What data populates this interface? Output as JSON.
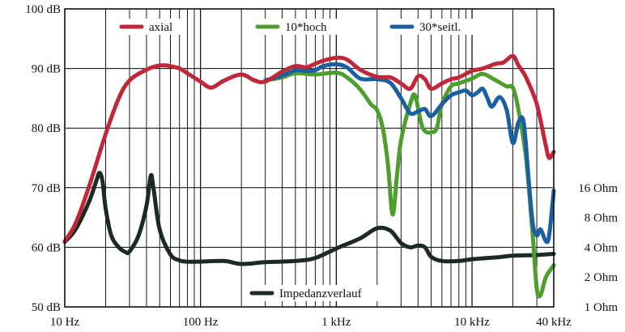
{
  "chart_data": {
    "type": "line",
    "title": "",
    "xlabel": "",
    "ylabel": "",
    "x_scale": "log",
    "xlim": [
      10,
      40000
    ],
    "ylim": [
      50,
      100
    ],
    "grid": true,
    "x_tick_labels": [
      {
        "value": 10,
        "label": "10 Hz"
      },
      {
        "value": 100,
        "label": "100 Hz"
      },
      {
        "value": 1000,
        "label": "1 kHz"
      },
      {
        "value": 10000,
        "label": "10 kHz"
      },
      {
        "value": 40000,
        "label": "40 kHz"
      }
    ],
    "y_tick_labels": [
      {
        "value": 50,
        "label": "50 dB"
      },
      {
        "value": 60,
        "label": "60 dB"
      },
      {
        "value": 70,
        "label": "70 dB"
      },
      {
        "value": 80,
        "label": "80 dB"
      },
      {
        "value": 90,
        "label": "90 dB"
      },
      {
        "value": 100,
        "label": "100 dB"
      }
    ],
    "right_axis_labels": [
      {
        "value": 16,
        "label": "16 Ohm"
      },
      {
        "value": 8,
        "label": "8 Ohm"
      },
      {
        "value": 4,
        "label": "4 Ohm"
      },
      {
        "value": 2,
        "label": "2 Ohm"
      },
      {
        "value": 1,
        "label": "1 Ohm"
      }
    ],
    "right_axis": {
      "scale": "log",
      "ohm_at_50dB": 1,
      "dB_per_octave": 5
    },
    "legend_placement": "top",
    "series": [
      {
        "name": "axial",
        "color": "#c0283a",
        "points": [
          [
            10,
            61
          ],
          [
            12,
            64
          ],
          [
            15,
            70
          ],
          [
            20,
            79
          ],
          [
            25,
            85
          ],
          [
            30,
            88
          ],
          [
            40,
            89.8
          ],
          [
            50,
            90.5
          ],
          [
            60,
            90.4
          ],
          [
            70,
            90
          ],
          [
            80,
            89.2
          ],
          [
            100,
            87.8
          ],
          [
            120,
            86.8
          ],
          [
            150,
            88
          ],
          [
            200,
            89
          ],
          [
            250,
            88
          ],
          [
            300,
            87.8
          ],
          [
            400,
            89.5
          ],
          [
            500,
            90.4
          ],
          [
            600,
            90.2
          ],
          [
            700,
            90.8
          ],
          [
            800,
            91.3
          ],
          [
            1000,
            91.8
          ],
          [
            1200,
            91.5
          ],
          [
            1500,
            89.8
          ],
          [
            2000,
            88.6
          ],
          [
            2500,
            88.5
          ],
          [
            3000,
            87.5
          ],
          [
            3500,
            86.6
          ],
          [
            4000,
            88.7
          ],
          [
            4500,
            88.2
          ],
          [
            5000,
            86.6
          ],
          [
            6000,
            87.5
          ],
          [
            7000,
            88.2
          ],
          [
            8000,
            88.5
          ],
          [
            10000,
            89.6
          ],
          [
            12000,
            90
          ],
          [
            15000,
            90.8
          ],
          [
            17000,
            91
          ],
          [
            20000,
            92.1
          ],
          [
            22000,
            90.5
          ],
          [
            25000,
            88.5
          ],
          [
            30000,
            84
          ],
          [
            35000,
            77
          ],
          [
            37000,
            75
          ],
          [
            40000,
            76
          ]
        ]
      },
      {
        "name": "10*hoch",
        "color": "#4d9e2f",
        "points": [
          [
            300,
            88
          ],
          [
            400,
            88.5
          ],
          [
            500,
            89.2
          ],
          [
            700,
            89
          ],
          [
            1000,
            89.3
          ],
          [
            1200,
            88.5
          ],
          [
            1500,
            86.5
          ],
          [
            1800,
            84
          ],
          [
            2000,
            83
          ],
          [
            2200,
            80
          ],
          [
            2400,
            74
          ],
          [
            2600,
            65.5
          ],
          [
            2800,
            72
          ],
          [
            3000,
            78
          ],
          [
            3500,
            84
          ],
          [
            3800,
            85.5
          ],
          [
            4200,
            81
          ],
          [
            4500,
            79.5
          ],
          [
            5000,
            79.3
          ],
          [
            5500,
            80
          ],
          [
            6000,
            84
          ],
          [
            7000,
            87
          ],
          [
            8000,
            87.5
          ],
          [
            10000,
            88.3
          ],
          [
            12000,
            89.1
          ],
          [
            15000,
            88
          ],
          [
            18000,
            87
          ],
          [
            20000,
            86.8
          ],
          [
            22000,
            83
          ],
          [
            25000,
            75
          ],
          [
            28000,
            62
          ],
          [
            30000,
            53
          ],
          [
            32000,
            52
          ],
          [
            35000,
            55
          ],
          [
            40000,
            57
          ]
        ]
      },
      {
        "name": "30*seitl.",
        "color": "#1c5fa0",
        "points": [
          [
            300,
            88
          ],
          [
            400,
            88.8
          ],
          [
            500,
            89.7
          ],
          [
            600,
            89.6
          ],
          [
            700,
            89.7
          ],
          [
            800,
            90.4
          ],
          [
            1000,
            90.7
          ],
          [
            1200,
            90.2
          ],
          [
            1500,
            88.3
          ],
          [
            2000,
            88.2
          ],
          [
            2500,
            87.6
          ],
          [
            3000,
            85
          ],
          [
            3500,
            82.5
          ],
          [
            4000,
            82.8
          ],
          [
            4500,
            83.2
          ],
          [
            5000,
            82
          ],
          [
            6000,
            84
          ],
          [
            7000,
            85.5
          ],
          [
            8000,
            86
          ],
          [
            9000,
            86.3
          ],
          [
            10000,
            85.5
          ],
          [
            11000,
            86
          ],
          [
            12000,
            86.6
          ],
          [
            13000,
            85
          ],
          [
            14000,
            83.6
          ],
          [
            16000,
            85.2
          ],
          [
            18000,
            83
          ],
          [
            20000,
            77.5
          ],
          [
            22000,
            81
          ],
          [
            24000,
            81
          ],
          [
            26000,
            72
          ],
          [
            28000,
            64
          ],
          [
            30000,
            62
          ],
          [
            32000,
            63
          ],
          [
            35000,
            61
          ],
          [
            37000,
            62
          ],
          [
            40000,
            69.5
          ]
        ]
      },
      {
        "name": "Impedanzverlauf",
        "color": "#1c2b22",
        "points": [
          [
            10,
            60.9
          ],
          [
            12,
            63
          ],
          [
            15,
            67.5
          ],
          [
            17,
            71
          ],
          [
            18,
            72.5
          ],
          [
            19,
            71
          ],
          [
            20,
            66.5
          ],
          [
            22,
            62
          ],
          [
            25,
            60
          ],
          [
            28,
            59.2
          ],
          [
            30,
            59.3
          ],
          [
            35,
            62
          ],
          [
            40,
            67
          ],
          [
            43,
            72
          ],
          [
            45,
            70
          ],
          [
            50,
            63
          ],
          [
            60,
            58.8
          ],
          [
            70,
            57.8
          ],
          [
            80,
            57.6
          ],
          [
            100,
            57.6
          ],
          [
            150,
            57.7
          ],
          [
            200,
            57.2
          ],
          [
            300,
            57.5
          ],
          [
            500,
            57.7
          ],
          [
            700,
            58.2
          ],
          [
            1000,
            59.8
          ],
          [
            1500,
            61.5
          ],
          [
            2000,
            63.2
          ],
          [
            2500,
            62.8
          ],
          [
            3000,
            60.7
          ],
          [
            3500,
            60
          ],
          [
            4000,
            60.3
          ],
          [
            4500,
            60
          ],
          [
            5000,
            58.4
          ],
          [
            6000,
            57.7
          ],
          [
            8000,
            57.7
          ],
          [
            10000,
            58
          ],
          [
            15000,
            58.3
          ],
          [
            20000,
            58.6
          ],
          [
            30000,
            58.7
          ],
          [
            40000,
            58.9
          ]
        ]
      }
    ]
  }
}
